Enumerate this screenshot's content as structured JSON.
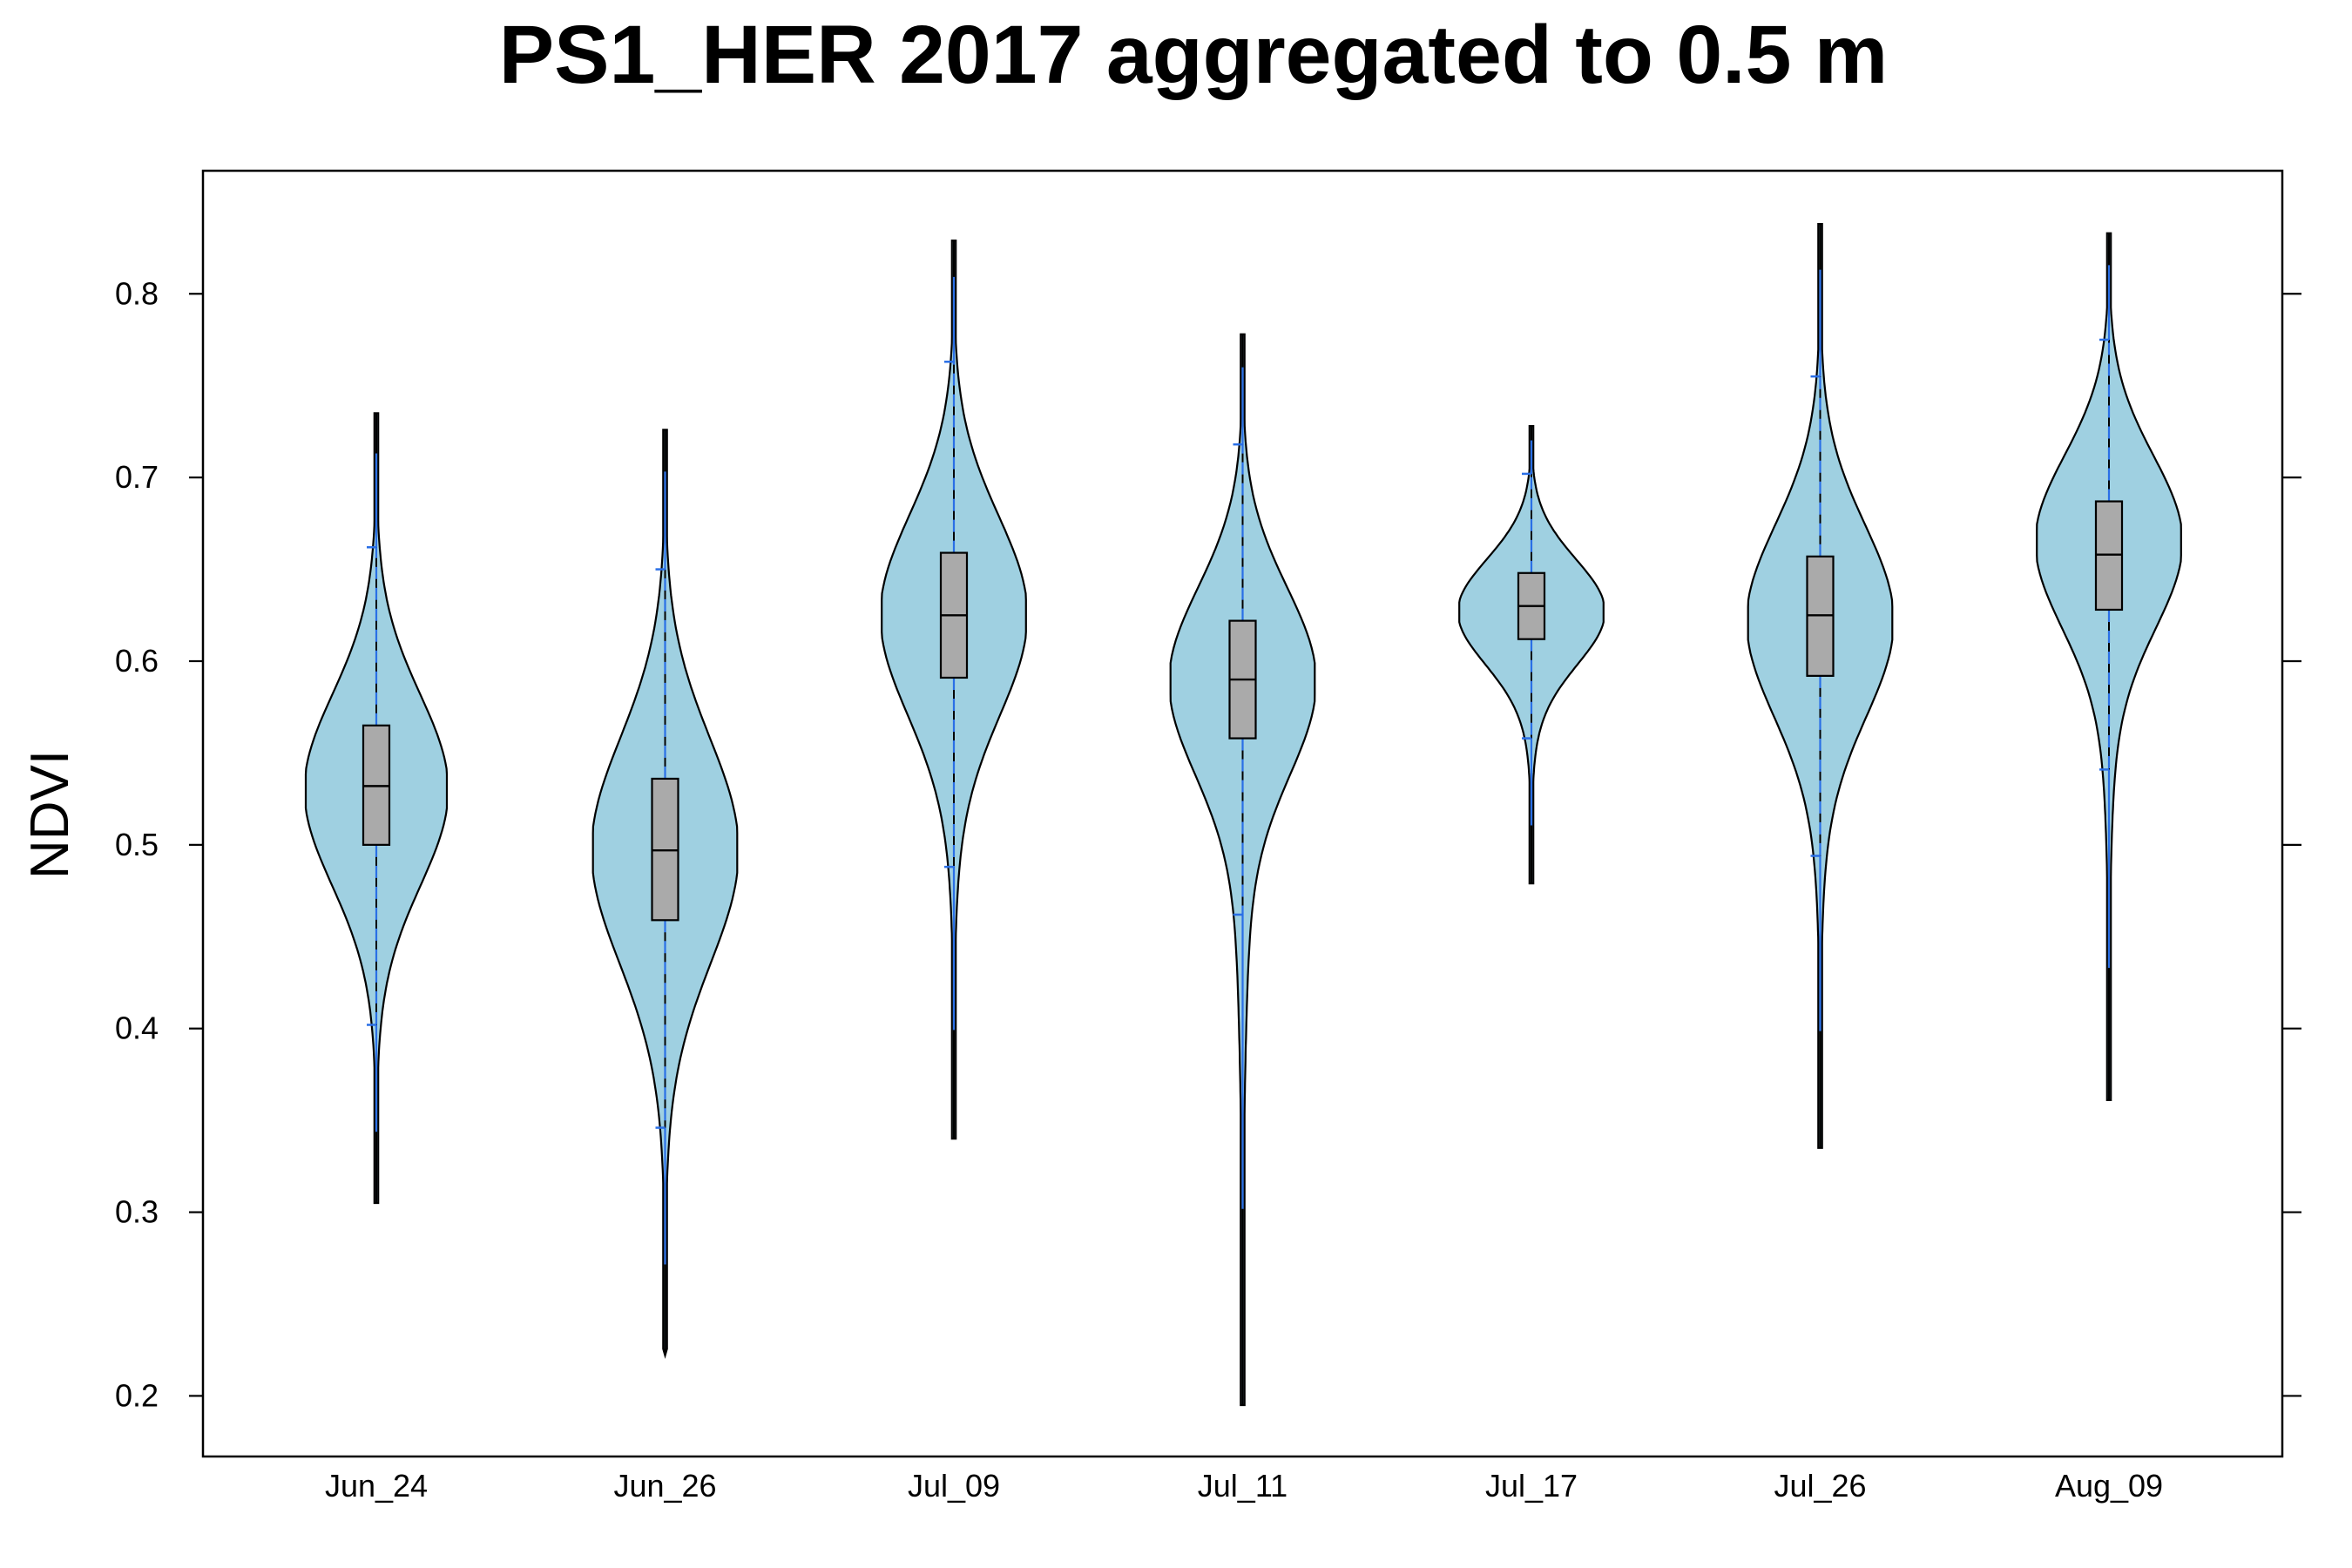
{
  "chart_data": {
    "type": "violin",
    "title": "PS1_HER 2017 aggregated to 0.5 m",
    "xlabel": "",
    "ylabel": "NDVI",
    "ylim": [
      0.167,
      0.867
    ],
    "yticks": [
      0.2,
      0.3,
      0.4,
      0.5,
      0.6,
      0.7,
      0.8
    ],
    "ytick_labels": [
      "0.2",
      "0.3",
      "0.4",
      "0.5",
      "0.6",
      "0.7",
      "0.8"
    ],
    "categories": [
      "Jun_24",
      "Jun_26",
      "Jul_09",
      "Jul_11",
      "Jul_17",
      "Jul_26",
      "Aug_09"
    ],
    "grid": false,
    "colors": {
      "violin_fill": "#9fd0e1",
      "box_fill": "#aaaaaa",
      "whisker": "#2a6fe6",
      "outline": "#000000"
    },
    "series": [
      {
        "category": "Jun_24",
        "min": 0.305,
        "max": 0.735,
        "q1": 0.5,
        "median": 0.532,
        "q3": 0.565,
        "whisker_low": 0.402,
        "whisker_high": 0.662,
        "mode": 0.53,
        "max_halfwidth": 0.044
      },
      {
        "category": "Jun_26",
        "min": 0.222,
        "max": 0.726,
        "q1": 0.459,
        "median": 0.497,
        "q3": 0.536,
        "whisker_low": 0.346,
        "whisker_high": 0.65,
        "mode": 0.497,
        "max_halfwidth": 0.045
      },
      {
        "category": "Jul_09",
        "min": 0.34,
        "max": 0.829,
        "q1": 0.591,
        "median": 0.625,
        "q3": 0.659,
        "whisker_low": 0.488,
        "whisker_high": 0.763,
        "mode": 0.625,
        "max_halfwidth": 0.045
      },
      {
        "category": "Jul_11",
        "min": 0.195,
        "max": 0.778,
        "q1": 0.558,
        "median": 0.59,
        "q3": 0.622,
        "whisker_low": 0.462,
        "whisker_high": 0.718,
        "mode": 0.589,
        "max_halfwidth": 0.045
      },
      {
        "category": "Jul_17",
        "min": 0.479,
        "max": 0.728,
        "q1": 0.612,
        "median": 0.63,
        "q3": 0.648,
        "whisker_low": 0.558,
        "whisker_high": 0.702,
        "mode": 0.627,
        "max_halfwidth": 0.045
      },
      {
        "category": "Jul_26",
        "min": 0.335,
        "max": 0.838,
        "q1": 0.592,
        "median": 0.625,
        "q3": 0.657,
        "whisker_low": 0.494,
        "whisker_high": 0.755,
        "mode": 0.622,
        "max_halfwidth": 0.045
      },
      {
        "category": "Aug_09",
        "min": 0.361,
        "max": 0.833,
        "q1": 0.628,
        "median": 0.658,
        "q3": 0.687,
        "whisker_low": 0.541,
        "whisker_high": 0.775,
        "mode": 0.665,
        "max_halfwidth": 0.045
      }
    ]
  }
}
